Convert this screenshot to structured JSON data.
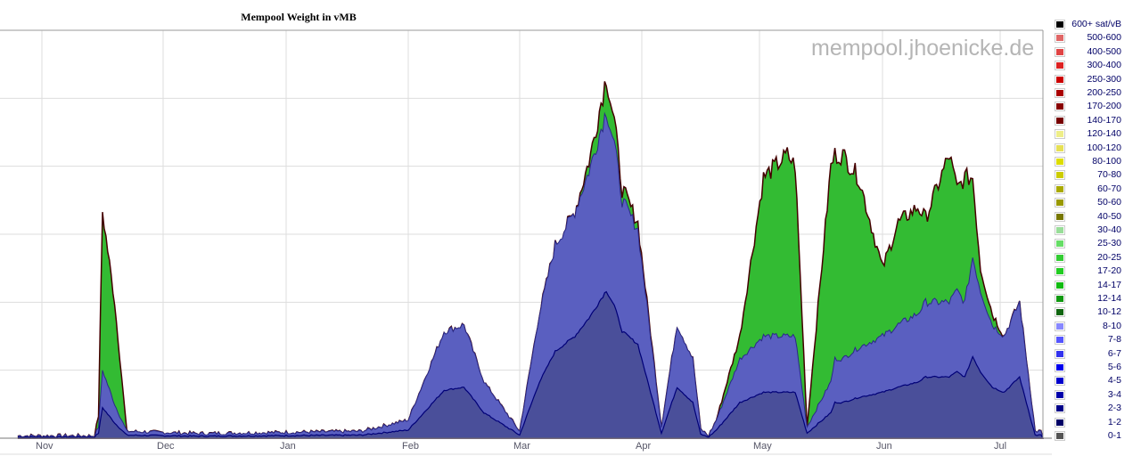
{
  "chart_data": {
    "type": "area",
    "title": "Mempool Weight in vMB",
    "watermark": "mempool.jhoenicke.de",
    "x_ticks": [
      "Nov",
      "Dec",
      "Jan",
      "Feb",
      "Mar",
      "Apr",
      "May",
      "Jun",
      "Jul"
    ],
    "grid": true,
    "legend_position": "right",
    "legend": [
      {
        "label": "600+ sat/vB",
        "color": "#000000"
      },
      {
        "label": "500-600",
        "color": "#e06666"
      },
      {
        "label": "400-500",
        "color": "#e04444"
      },
      {
        "label": "300-400",
        "color": "#dd2222"
      },
      {
        "label": "250-300",
        "color": "#cc0000"
      },
      {
        "label": "200-250",
        "color": "#aa0000"
      },
      {
        "label": "170-200",
        "color": "#880000"
      },
      {
        "label": "140-170",
        "color": "#770000"
      },
      {
        "label": "120-140",
        "color": "#eeee88"
      },
      {
        "label": "100-120",
        "color": "#e6e055"
      },
      {
        "label": "80-100",
        "color": "#dddd00"
      },
      {
        "label": "70-80",
        "color": "#cccc00"
      },
      {
        "label": "60-70",
        "color": "#aaaa00"
      },
      {
        "label": "50-60",
        "color": "#999900"
      },
      {
        "label": "40-50",
        "color": "#777700"
      },
      {
        "label": "30-40",
        "color": "#99dd99"
      },
      {
        "label": "25-30",
        "color": "#66dd66"
      },
      {
        "label": "20-25",
        "color": "#33cc33"
      },
      {
        "label": "17-20",
        "color": "#22cc22"
      },
      {
        "label": "14-17",
        "color": "#11bb11"
      },
      {
        "label": "12-14",
        "color": "#119911"
      },
      {
        "label": "10-12",
        "color": "#116611"
      },
      {
        "label": "8-10",
        "color": "#8888ff"
      },
      {
        "label": "7-8",
        "color": "#5555ff"
      },
      {
        "label": "6-7",
        "color": "#3333ee"
      },
      {
        "label": "5-6",
        "color": "#0000ee"
      },
      {
        "label": "4-5",
        "color": "#0000cc"
      },
      {
        "label": "3-4",
        "color": "#0000aa"
      },
      {
        "label": "2-3",
        "color": "#000088"
      },
      {
        "label": "1-2",
        "color": "#000066"
      },
      {
        "label": "0-1",
        "color": "#555555"
      }
    ],
    "series_approx": {
      "dates": [
        "Oct 25",
        "Nov 1",
        "Nov 14",
        "Nov 15",
        "Nov 16",
        "Nov 19",
        "Nov 22",
        "Dec 10",
        "Jan 20",
        "Feb 1",
        "Feb 10",
        "Feb 15",
        "Feb 20",
        "Mar 1",
        "Mar 6",
        "Mar 10",
        "Mar 15",
        "Mar 19",
        "Mar 23",
        "Mar 25",
        "Mar 27",
        "Mar 31",
        "Apr 6",
        "Apr 10",
        "Apr 14",
        "Apr 16",
        "Apr 18",
        "Apr 20",
        "Apr 26",
        "May 2",
        "May 8",
        "May 10",
        "May 13",
        "May 19",
        "May 20",
        "May 22",
        "May 26",
        "Jun 1",
        "Jun 5",
        "Jun 10",
        "Jun 12",
        "Jun 18",
        "Jun 20",
        "Jun 22",
        "Jun 24",
        "Jun 26",
        "Jun 29",
        "Jul 2",
        "Jul 6",
        "Jul 10"
      ],
      "total": [
        0.1,
        0.1,
        0.1,
        1.0,
        10.0,
        6.0,
        0.3,
        0.2,
        0.3,
        0.8,
        4.7,
        5.0,
        2.5,
        0.3,
        5.5,
        8.5,
        10.0,
        12.5,
        16.0,
        14.0,
        11.0,
        9.5,
        0.5,
        5.0,
        3.5,
        0.4,
        0.1,
        0.8,
        4.5,
        11.5,
        12.5,
        12.0,
        0.5,
        12.0,
        12.5,
        12.5,
        11.5,
        7.5,
        9.5,
        10.2,
        9.7,
        12.5,
        11.0,
        11.5,
        11.5,
        7.5,
        5.5,
        4.5,
        6.0,
        0.3
      ],
      "below_10_sat_vB": [
        0.1,
        0.1,
        0.1,
        0.5,
        3.0,
        1.5,
        0.3,
        0.2,
        0.3,
        0.8,
        4.7,
        5.0,
        2.5,
        0.3,
        5.5,
        8.5,
        10.0,
        12.0,
        14.5,
        13.0,
        10.5,
        9.2,
        0.5,
        5.0,
        3.5,
        0.4,
        0.1,
        0.8,
        3.5,
        4.5,
        4.5,
        4.5,
        0.5,
        2.5,
        3.5,
        3.5,
        4.0,
        4.5,
        5.0,
        5.5,
        6.0,
        6.0,
        6.5,
        6.0,
        8.0,
        6.5,
        5.0,
        4.5,
        6.0,
        0.3
      ]
    }
  }
}
